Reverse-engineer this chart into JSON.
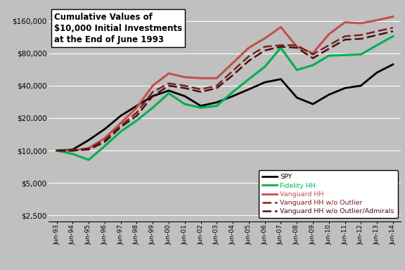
{
  "title": "Cumulative Values of\n$10,000 Initial Investments\nat the End of June 1993",
  "bg_color": "#c0c0c0",
  "x_labels": [
    "Jun-93",
    "Jun-94",
    "Jun-95",
    "Jun-96",
    "Jun-97",
    "Jun-98",
    "Jun-99",
    "Jun-00",
    "Jun-01",
    "Jun-02",
    "Jun-03",
    "Jun-04",
    "Jun-05",
    "Jun-06",
    "Jun-07",
    "Jun-08",
    "Jun-09",
    "Jun-10",
    "Jun-11",
    "Jun-12",
    "Jun-13",
    "Jun-14"
  ],
  "SPY": [
    10000,
    10200,
    12500,
    15800,
    21000,
    26000,
    32000,
    36000,
    32000,
    26000,
    28000,
    32000,
    37000,
    43000,
    46000,
    31000,
    27000,
    33000,
    38000,
    40000,
    53000,
    63000
  ],
  "Fidelity_HH": [
    10000,
    9300,
    8200,
    11000,
    15000,
    19000,
    25000,
    34000,
    27000,
    25000,
    26000,
    35000,
    46000,
    60000,
    90000,
    56000,
    62000,
    76000,
    77000,
    78000,
    95000,
    115000
  ],
  "Vanguard_HH": [
    10000,
    10000,
    10500,
    13000,
    18000,
    25000,
    40000,
    52000,
    48000,
    47000,
    47000,
    65000,
    90000,
    110000,
    140000,
    92000,
    80000,
    120000,
    155000,
    152000,
    162000,
    175000
  ],
  "Vanguard_HH_wo": [
    10000,
    10000,
    10500,
    12500,
    17000,
    22500,
    35000,
    42000,
    40000,
    37000,
    40000,
    55000,
    75000,
    92000,
    95000,
    95000,
    78000,
    95000,
    115000,
    118000,
    128000,
    138000
  ],
  "Vanguard_HH_wo_adm": [
    10000,
    10000,
    10200,
    12000,
    16500,
    21000,
    32000,
    40000,
    38000,
    35000,
    38000,
    50000,
    68000,
    85000,
    92000,
    90000,
    72000,
    88000,
    107000,
    109000,
    118000,
    128000
  ],
  "yticks": [
    2500,
    5000,
    10000,
    20000,
    40000,
    80000,
    160000
  ],
  "ylim": [
    2200,
    210000
  ],
  "legend_labels": [
    "SPY",
    "Fidelity HH",
    "Vanguard HH",
    "Vanguard HH w/o Outlier",
    "Vanguard HH w/o Outlier/Admirals"
  ],
  "legend_colors": [
    "#000000",
    "#00b050",
    "#c0504d",
    "#7b2020",
    "#4a1010"
  ],
  "line_colors": [
    "#000000",
    "#00b050",
    "#c0504d",
    "#7b2020",
    "#4a1010"
  ],
  "line_widths": [
    2.0,
    2.2,
    2.2,
    1.8,
    1.8
  ],
  "line_styles": [
    "solid",
    "solid",
    "solid",
    "dashed",
    "dashed"
  ]
}
